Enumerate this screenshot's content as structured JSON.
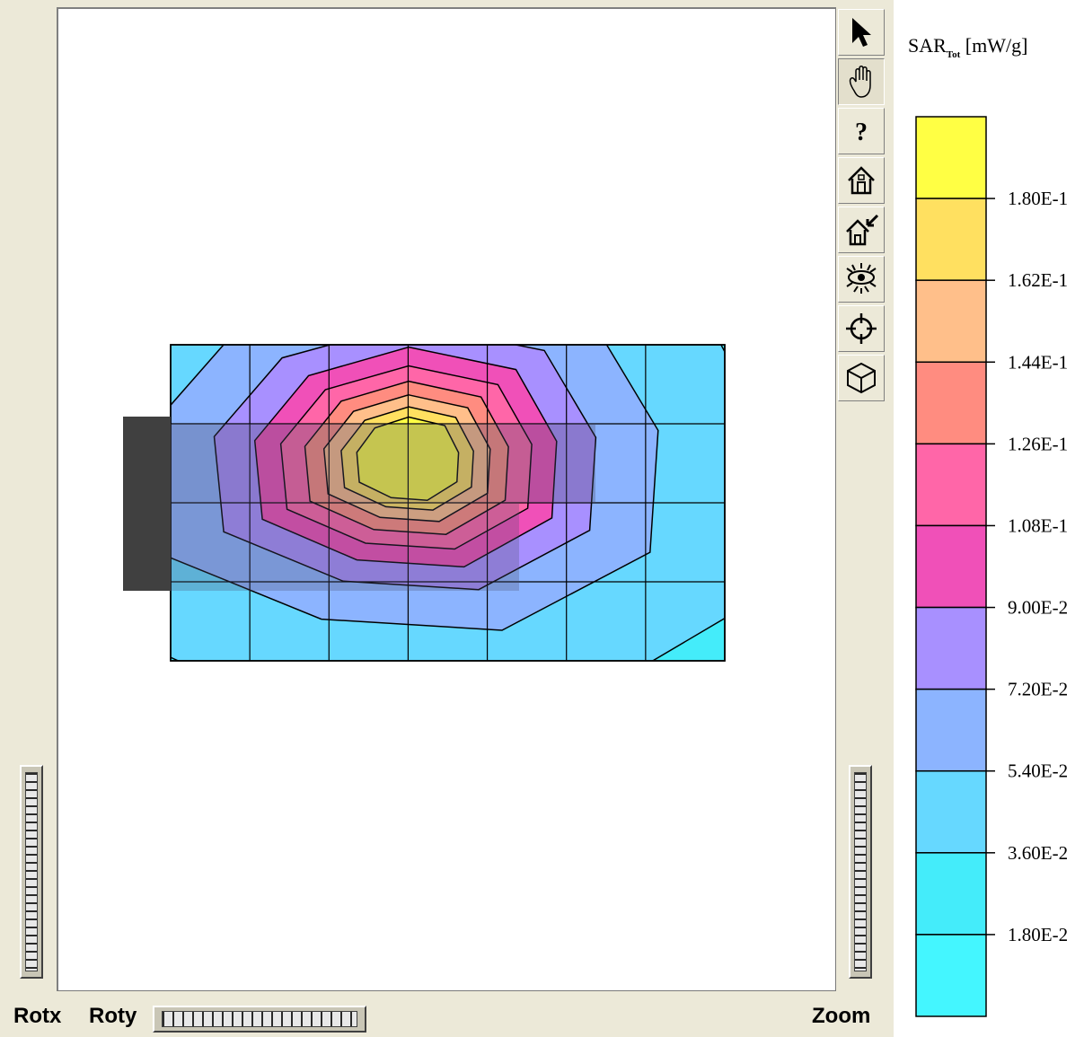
{
  "toolbar": {
    "tools": [
      {
        "name": "select-tool",
        "icon": "arrow-pointer-icon",
        "pressed": false
      },
      {
        "name": "pan-tool",
        "icon": "hand-icon",
        "pressed": true
      },
      {
        "name": "help-tool",
        "icon": "question-mark-icon",
        "pressed": false
      },
      {
        "name": "home-tool",
        "icon": "house-icon",
        "pressed": false
      },
      {
        "name": "home-set-tool",
        "icon": "house-arrow-icon",
        "pressed": false
      },
      {
        "name": "view-eye-tool",
        "icon": "eye-icon",
        "pressed": false
      },
      {
        "name": "center-tool",
        "icon": "crosshair-icon",
        "pressed": false
      },
      {
        "name": "cube-tool",
        "icon": "cube-icon",
        "pressed": false
      }
    ]
  },
  "controls": {
    "rotx_label": "Rotx",
    "roty_label": "Roty",
    "zoom_label": "Zoom"
  },
  "legend": {
    "title_main": "SAR",
    "title_sub": "Tot",
    "title_unit": " [mW/g]",
    "levels": [
      "1.80E-1",
      "1.62E-1",
      "1.44E-1",
      "1.26E-1",
      "1.08E-1",
      "9.00E-2",
      "7.20E-2",
      "5.40E-2",
      "3.60E-2",
      "1.80E-2"
    ],
    "colors": [
      "#ffff44",
      "#ffe060",
      "#ffbf8a",
      "#ff8c80",
      "#ff66a8",
      "#f050b8",
      "#a890ff",
      "#8cb4ff",
      "#66d8ff",
      "#44ecfa",
      "#44f6ff"
    ]
  }
}
